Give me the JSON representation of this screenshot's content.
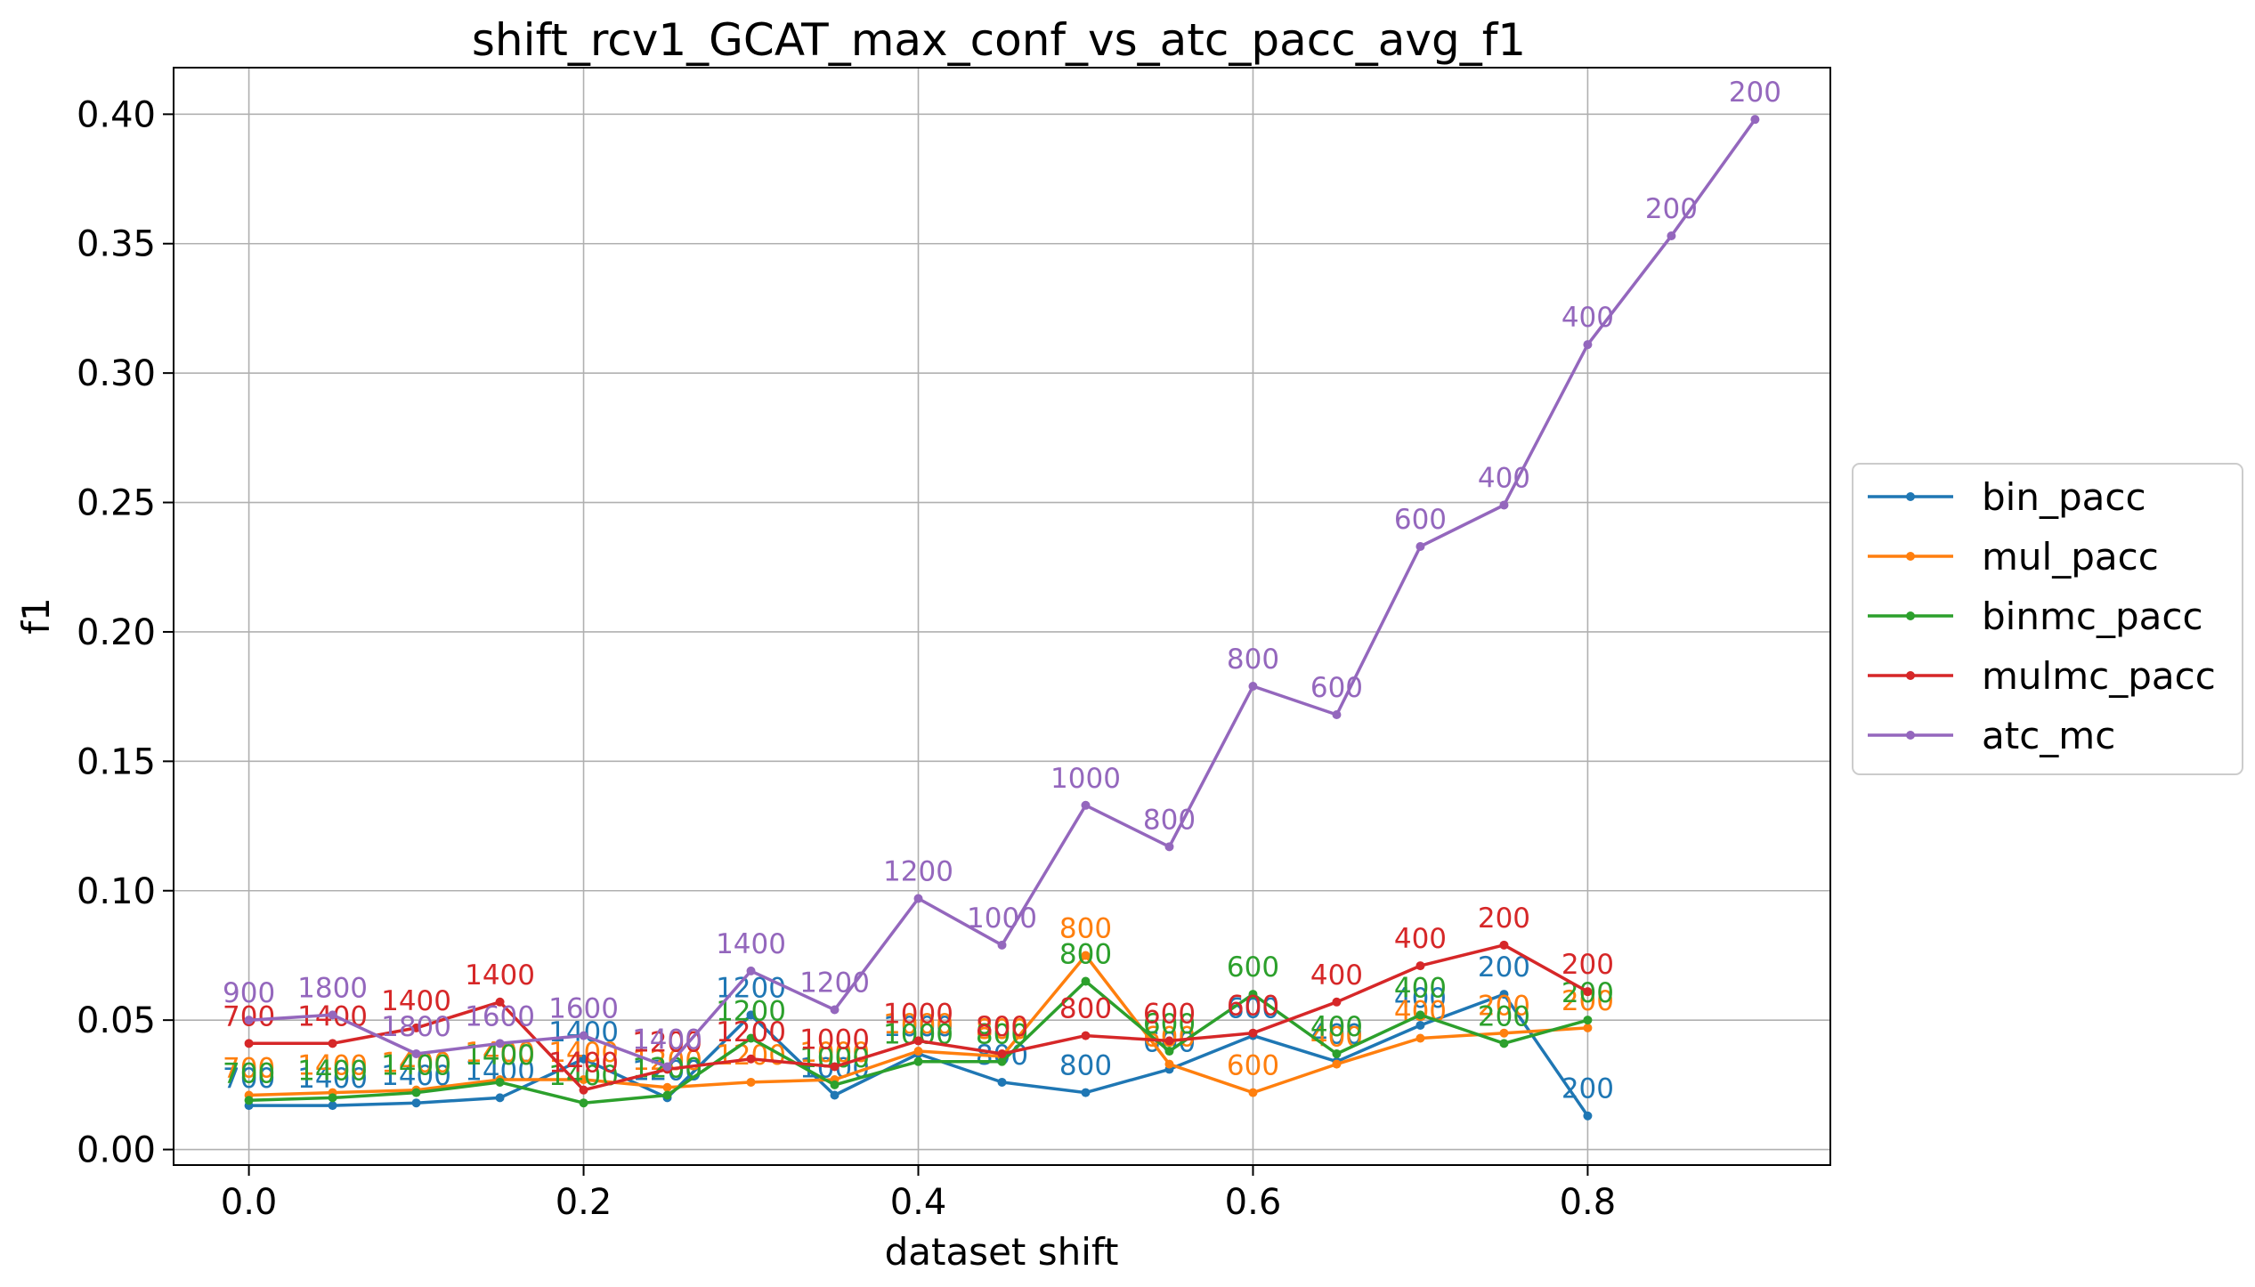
{
  "chart_data": {
    "type": "line",
    "title": "shift_rcv1_GCAT_max_conf_vs_atc_pacc_avg_f1",
    "xlabel": "dataset shift",
    "ylabel": "f1",
    "xlim": [
      -0.045,
      0.945
    ],
    "ylim": [
      -0.006,
      0.418
    ],
    "grid": true,
    "legend_position": "right",
    "xticks": [
      {
        "value": 0.0,
        "label": "0.0"
      },
      {
        "value": 0.2,
        "label": "0.2"
      },
      {
        "value": 0.4,
        "label": "0.4"
      },
      {
        "value": 0.6,
        "label": "0.6"
      },
      {
        "value": 0.8,
        "label": "0.8"
      }
    ],
    "yticks": [
      {
        "value": 0.0,
        "label": "0.00"
      },
      {
        "value": 0.05,
        "label": "0.05"
      },
      {
        "value": 0.1,
        "label": "0.10"
      },
      {
        "value": 0.15,
        "label": "0.15"
      },
      {
        "value": 0.2,
        "label": "0.20"
      },
      {
        "value": 0.25,
        "label": "0.25"
      },
      {
        "value": 0.3,
        "label": "0.30"
      },
      {
        "value": 0.35,
        "label": "0.35"
      },
      {
        "value": 0.4,
        "label": "0.40"
      }
    ],
    "series": [
      {
        "name": "bin_pacc",
        "color": "#1f77b4",
        "x": [
          0.0,
          0.05,
          0.1,
          0.15,
          0.2,
          0.25,
          0.3,
          0.35,
          0.4,
          0.45,
          0.5,
          0.55,
          0.6,
          0.65,
          0.7,
          0.75,
          0.8
        ],
        "y": [
          0.017,
          0.017,
          0.018,
          0.02,
          0.035,
          0.02,
          0.052,
          0.021,
          0.037,
          0.026,
          0.022,
          0.031,
          0.044,
          0.034,
          0.048,
          0.06,
          0.013
        ],
        "labels": [
          "700",
          "1400",
          "1400",
          "1400",
          "1400",
          "1200",
          "1200",
          "1000",
          "1000",
          "800",
          "800",
          "600",
          "600",
          "400",
          "400",
          "200",
          "200"
        ]
      },
      {
        "name": "mul_pacc",
        "color": "#ff7f0e",
        "x": [
          0.0,
          0.05,
          0.1,
          0.15,
          0.2,
          0.25,
          0.3,
          0.35,
          0.4,
          0.45,
          0.5,
          0.55,
          0.6,
          0.65,
          0.7,
          0.75,
          0.8
        ],
        "y": [
          0.021,
          0.022,
          0.023,
          0.027,
          0.027,
          0.024,
          0.026,
          0.027,
          0.038,
          0.036,
          0.075,
          0.033,
          0.022,
          0.033,
          0.043,
          0.045,
          0.047
        ],
        "labels": [
          "700",
          "1400",
          "1400",
          "1400",
          "1400",
          "1200",
          "1200",
          "1000",
          "1000",
          "800",
          "800",
          "600",
          "600",
          "400",
          "400",
          "200",
          "200"
        ]
      },
      {
        "name": "binmc_pacc",
        "color": "#2ca02c",
        "x": [
          0.0,
          0.05,
          0.1,
          0.15,
          0.2,
          0.25,
          0.3,
          0.35,
          0.4,
          0.45,
          0.5,
          0.55,
          0.6,
          0.65,
          0.7,
          0.75,
          0.8
        ],
        "y": [
          0.019,
          0.02,
          0.022,
          0.026,
          0.018,
          0.021,
          0.043,
          0.025,
          0.034,
          0.034,
          0.065,
          0.038,
          0.06,
          0.037,
          0.052,
          0.041,
          0.05
        ],
        "labels": [
          "700",
          "1400",
          "1400",
          "1400",
          "1400",
          "1200",
          "1200",
          "1000",
          "1000",
          "800",
          "800",
          "600",
          "600",
          "400",
          "400",
          "200",
          "200"
        ]
      },
      {
        "name": "mulmc_pacc",
        "color": "#d62728",
        "x": [
          0.0,
          0.05,
          0.1,
          0.15,
          0.2,
          0.25,
          0.3,
          0.35,
          0.4,
          0.45,
          0.5,
          0.55,
          0.6,
          0.65,
          0.7,
          0.75,
          0.8
        ],
        "y": [
          0.041,
          0.041,
          0.047,
          0.057,
          0.023,
          0.031,
          0.035,
          0.032,
          0.042,
          0.037,
          0.044,
          0.042,
          0.045,
          0.057,
          0.071,
          0.079,
          0.061
        ],
        "labels": [
          "700",
          "1400",
          "1400",
          "1400",
          "1400",
          "1200",
          "1200",
          "1000",
          "1000",
          "800",
          "800",
          "600",
          "600",
          "400",
          "400",
          "200",
          "200"
        ]
      },
      {
        "name": "atc_mc",
        "color": "#9467bd",
        "x": [
          0.0,
          0.05,
          0.1,
          0.15,
          0.2,
          0.25,
          0.3,
          0.35,
          0.4,
          0.45,
          0.5,
          0.55,
          0.6,
          0.65,
          0.7,
          0.75,
          0.8,
          0.85,
          0.9
        ],
        "y": [
          0.05,
          0.052,
          0.037,
          0.041,
          0.044,
          0.032,
          0.069,
          0.054,
          0.097,
          0.079,
          0.133,
          0.117,
          0.179,
          0.168,
          0.233,
          0.249,
          0.311,
          0.353,
          0.398
        ],
        "labels": [
          "900",
          "1800",
          "1800",
          "1600",
          "1600",
          "1400",
          "1400",
          "1200",
          "1200",
          "1000",
          "1000",
          "800",
          "800",
          "600",
          "600",
          "400",
          "400",
          "200",
          "200"
        ]
      }
    ]
  }
}
